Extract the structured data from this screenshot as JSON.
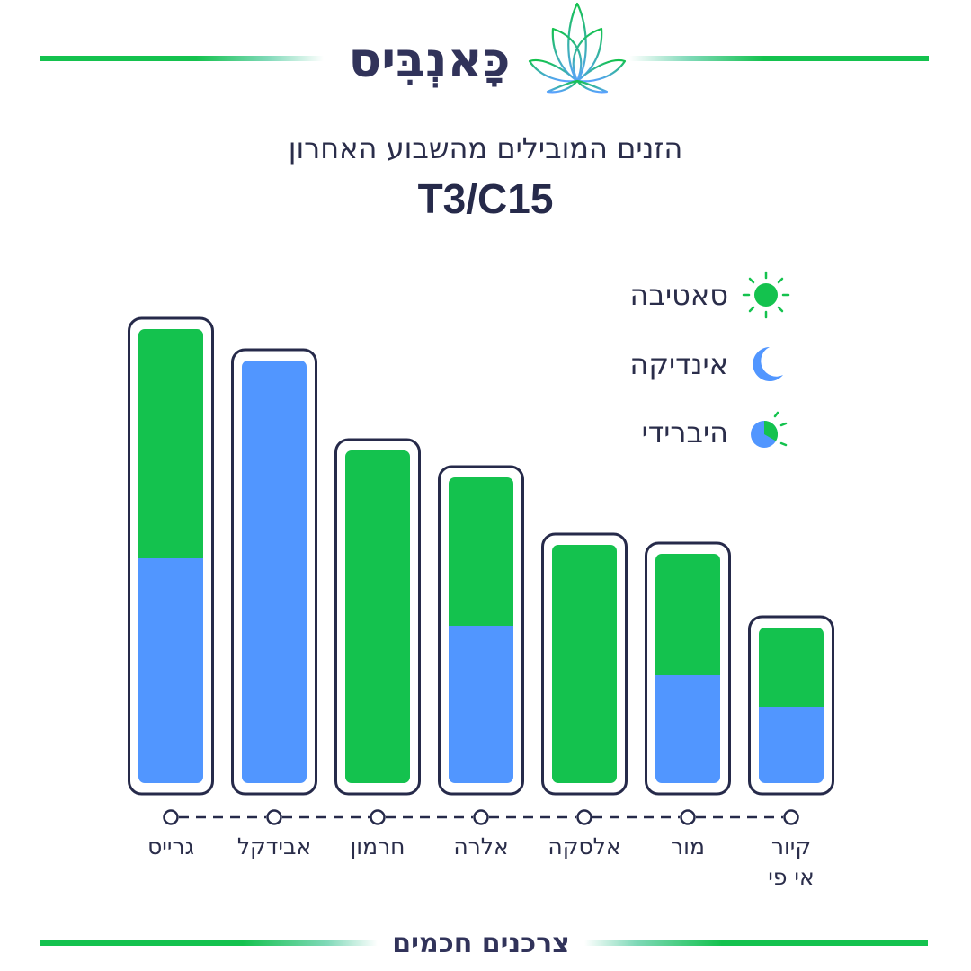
{
  "header": {
    "brand": "כָּאנְבִּיס",
    "subtitle": "הזנים המובילים מהשבוע האחרון",
    "code": "T3/C15"
  },
  "legend": {
    "sativa": "סאטיבה",
    "indica": "אינדיקה",
    "hybrid": "היברידי"
  },
  "colors": {
    "sativa": "#14c24e",
    "indica": "#5196ff",
    "outline": "#262a4a"
  },
  "chart_data": {
    "type": "bar",
    "stacked": true,
    "categories": [
      "גרייס",
      "אבידקל",
      "חרמון",
      "אלרה",
      "אלסקה",
      "מור",
      "קיור\nאי פי"
    ],
    "series": [
      {
        "name": "אינדיקה",
        "values": [
          25,
          47,
          0,
          17.5,
          0,
          12,
          8.5
        ]
      },
      {
        "name": "סאטיבה",
        "values": [
          25.5,
          0,
          37,
          16.5,
          26.5,
          13.5,
          8.8
        ]
      }
    ],
    "ylim": [
      0,
      51
    ]
  },
  "footer": {
    "text": "צרכנים חכמים"
  }
}
